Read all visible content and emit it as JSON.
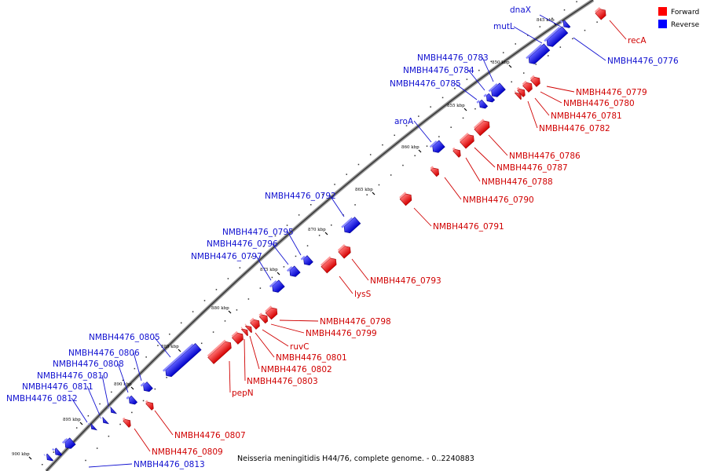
{
  "legend": {
    "forward_label": "Forward",
    "reverse_label": "Reverse",
    "forward_color": "#ff0000",
    "reverse_color": "#0000ff"
  },
  "caption": "Neisseria meningitidis H44/76, complete genome. - 0..2240883",
  "scale_ticks": [
    "845 kbp",
    "850 kbp",
    "855 kbp",
    "860 kbp",
    "865 kbp",
    "870 kbp",
    "875 kbp",
    "880 kbp",
    "885 kbp",
    "890 kbp",
    "895 kbp",
    "900 kbp"
  ],
  "forward_labels": [
    "recA",
    "NMBH4476_0779",
    "NMBH4476_0780",
    "NMBH4476_0781",
    "NMBH4476_0782",
    "NMBH4476_0786",
    "NMBH4476_0787",
    "NMBH4476_0788",
    "NMBH4476_0790",
    "NMBH4476_0791",
    "NMBH4476_0793",
    "lysS",
    "NMBH4476_0798",
    "NMBH4476_0799",
    "ruvC",
    "NMBH4476_0801",
    "NMBH4476_0802",
    "NMBH4476_0803",
    "pepN",
    "NMBH4476_0807",
    "NMBH4476_0809"
  ],
  "reverse_labels": [
    "dnaX",
    "mutL",
    "NMBH4476_0776",
    "NMBH4476_0783",
    "NMBH4476_0784",
    "NMBH4476_0785",
    "aroA",
    "NMBH4476_0792",
    "NMBH4476_0795",
    "NMBH4476_0796",
    "NMBH4476_0797",
    "NMBH4476_0805",
    "NMBH4476_0806",
    "NMBH4476_0808",
    "NMBH4476_0810",
    "NMBH4476_0811",
    "NMBH4476_0812",
    "NMBH4476_0813"
  ]
}
